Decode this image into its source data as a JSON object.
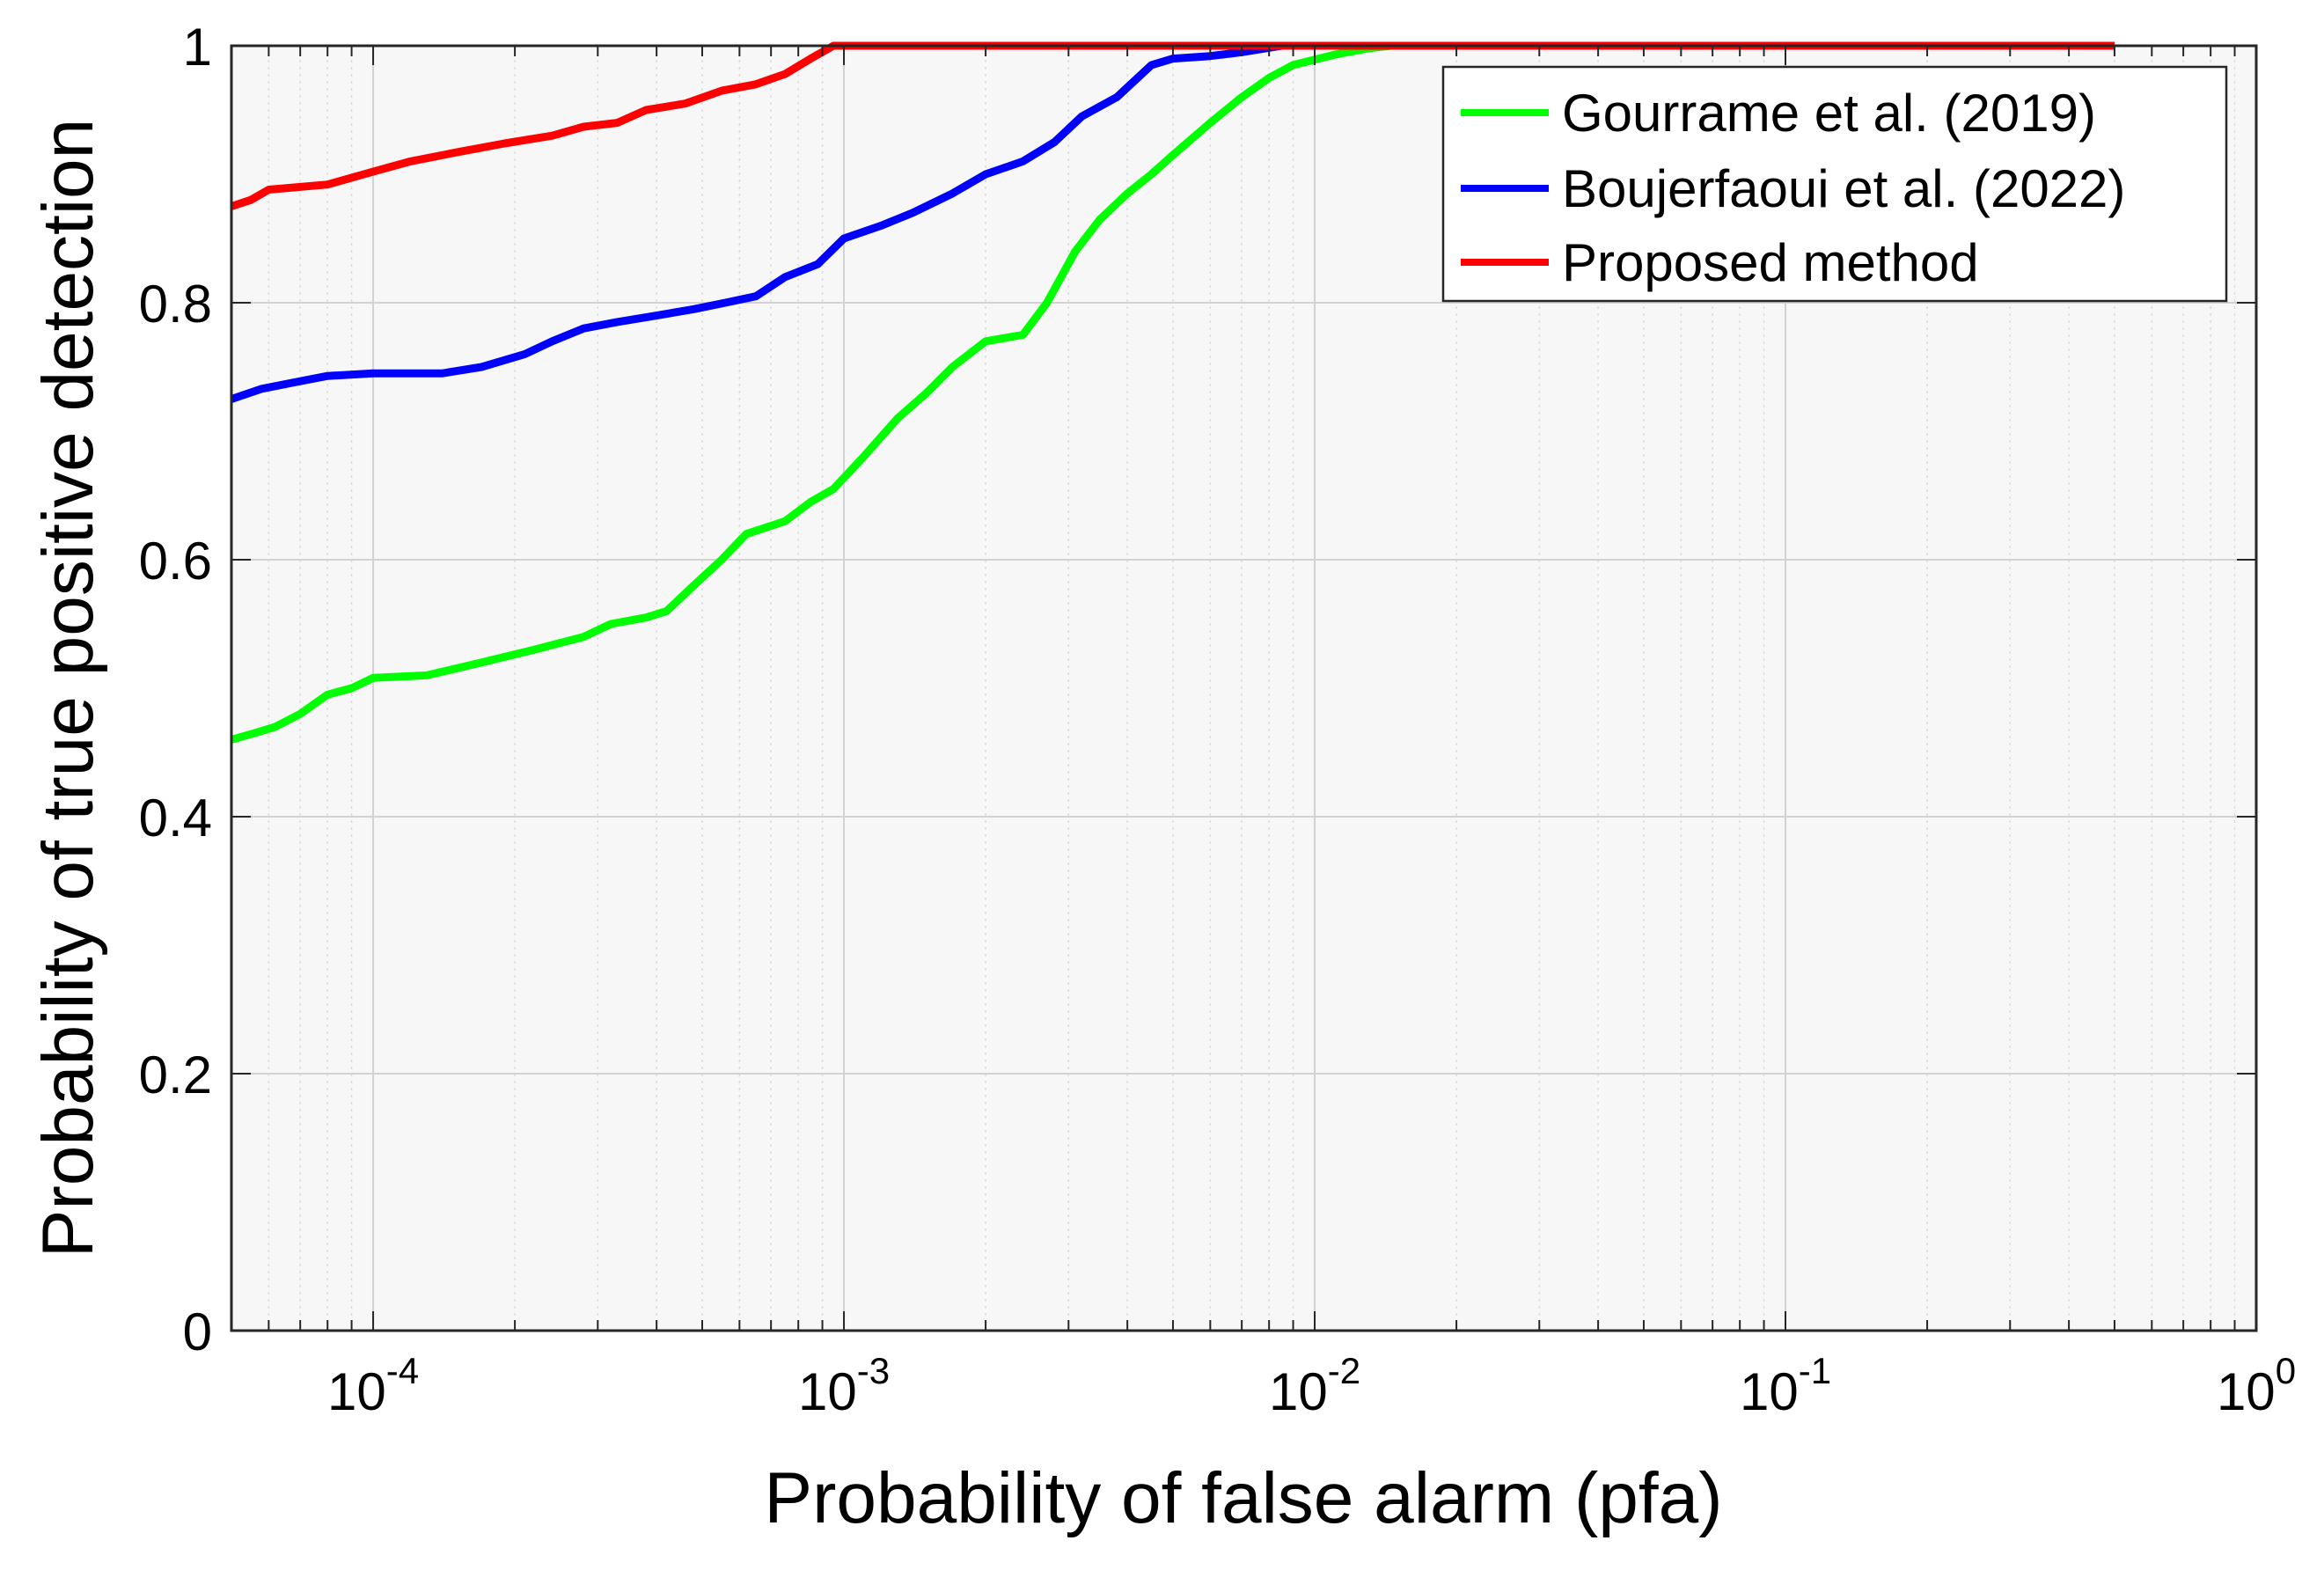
{
  "chart_data": {
    "type": "line",
    "title": "",
    "xlabel": "Probability of false alarm (pfa)",
    "ylabel": "Probability of true positive detection",
    "x_scale": "log",
    "xlim": [
      5e-05,
      1
    ],
    "ylim": [
      0,
      1
    ],
    "grid": true,
    "minor_grid": true,
    "legend_position": "top-right",
    "x_ticks": [
      {
        "value": 0.0001,
        "base": "10",
        "exp": "-4"
      },
      {
        "value": 0.001,
        "base": "10",
        "exp": "-3"
      },
      {
        "value": 0.01,
        "base": "10",
        "exp": "-2"
      },
      {
        "value": 0.1,
        "base": "10",
        "exp": "-1"
      },
      {
        "value": 1,
        "base": "10",
        "exp": "0"
      }
    ],
    "y_ticks": [
      {
        "value": 0,
        "label": "0"
      },
      {
        "value": 0.2,
        "label": "0.2"
      },
      {
        "value": 0.4,
        "label": "0.4"
      },
      {
        "value": 0.6,
        "label": "0.6"
      },
      {
        "value": 0.8,
        "label": "0.8"
      },
      {
        "value": 1,
        "label": "1"
      }
    ],
    "series": [
      {
        "name": "Gourrame et al. (2019)",
        "color": "#00ff00",
        "points": [
          [
            5e-05,
            0.46
          ],
          [
            5.6e-05,
            0.465
          ],
          [
            6.2e-05,
            0.47
          ],
          [
            7e-05,
            0.48
          ],
          [
            8e-05,
            0.495
          ],
          [
            9e-05,
            0.5
          ],
          [
            0.0001,
            0.508
          ],
          [
            0.00013,
            0.51
          ],
          [
            0.00017,
            0.52
          ],
          [
            0.00022,
            0.53
          ],
          [
            0.00028,
            0.54
          ],
          [
            0.00032,
            0.55
          ],
          [
            0.00038,
            0.555
          ],
          [
            0.00042,
            0.56
          ],
          [
            0.00048,
            0.58
          ],
          [
            0.00055,
            0.6
          ],
          [
            0.00062,
            0.62
          ],
          [
            0.00075,
            0.63
          ],
          [
            0.00085,
            0.645
          ],
          [
            0.00095,
            0.655
          ],
          [
            0.0011,
            0.68
          ],
          [
            0.0013,
            0.71
          ],
          [
            0.0015,
            0.73
          ],
          [
            0.0017,
            0.75
          ],
          [
            0.002,
            0.77
          ],
          [
            0.0024,
            0.775
          ],
          [
            0.0027,
            0.8
          ],
          [
            0.0031,
            0.84
          ],
          [
            0.0035,
            0.865
          ],
          [
            0.004,
            0.885
          ],
          [
            0.0045,
            0.9
          ],
          [
            0.005,
            0.915
          ],
          [
            0.006,
            0.94
          ],
          [
            0.007,
            0.96
          ],
          [
            0.008,
            0.975
          ],
          [
            0.009,
            0.985
          ],
          [
            0.011,
            0.993
          ],
          [
            0.013,
            0.998
          ],
          [
            0.0145,
            1.0
          ],
          [
            0.5,
            1.0
          ]
        ]
      },
      {
        "name": "Boujerfaoui et al. (2022)",
        "color": "#0000ff",
        "points": [
          [
            5e-05,
            0.725
          ],
          [
            5.8e-05,
            0.733
          ],
          [
            6.8e-05,
            0.738
          ],
          [
            8e-05,
            0.743
          ],
          [
            0.0001,
            0.745
          ],
          [
            0.00014,
            0.745
          ],
          [
            0.00017,
            0.75
          ],
          [
            0.00021,
            0.76
          ],
          [
            0.00024,
            0.77
          ],
          [
            0.00028,
            0.78
          ],
          [
            0.00033,
            0.785
          ],
          [
            0.0004,
            0.79
          ],
          [
            0.00048,
            0.795
          ],
          [
            0.00056,
            0.8
          ],
          [
            0.00065,
            0.805
          ],
          [
            0.00075,
            0.82
          ],
          [
            0.00088,
            0.83
          ],
          [
            0.001,
            0.85
          ],
          [
            0.0012,
            0.86
          ],
          [
            0.0014,
            0.87
          ],
          [
            0.0017,
            0.885
          ],
          [
            0.002,
            0.9
          ],
          [
            0.0024,
            0.91
          ],
          [
            0.0028,
            0.925
          ],
          [
            0.0032,
            0.945
          ],
          [
            0.0038,
            0.96
          ],
          [
            0.0045,
            0.985
          ],
          [
            0.005,
            0.99
          ],
          [
            0.006,
            0.992
          ],
          [
            0.007,
            0.995
          ],
          [
            0.0085,
            1.0
          ],
          [
            0.5,
            1.0
          ]
        ]
      },
      {
        "name": "Proposed method",
        "color": "#ff0000",
        "points": [
          [
            5e-05,
            0.875
          ],
          [
            5.5e-05,
            0.88
          ],
          [
            6e-05,
            0.888
          ],
          [
            8e-05,
            0.892
          ],
          [
            0.0001,
            0.902
          ],
          [
            0.00012,
            0.91
          ],
          [
            0.00015,
            0.917
          ],
          [
            0.00019,
            0.924
          ],
          [
            0.00024,
            0.93
          ],
          [
            0.00028,
            0.937
          ],
          [
            0.00033,
            0.94
          ],
          [
            0.00038,
            0.95
          ],
          [
            0.00046,
            0.955
          ],
          [
            0.00055,
            0.965
          ],
          [
            0.00065,
            0.97
          ],
          [
            0.00075,
            0.978
          ],
          [
            0.00085,
            0.99
          ],
          [
            0.00095,
            1.0
          ],
          [
            0.5,
            1.0
          ]
        ]
      }
    ]
  }
}
